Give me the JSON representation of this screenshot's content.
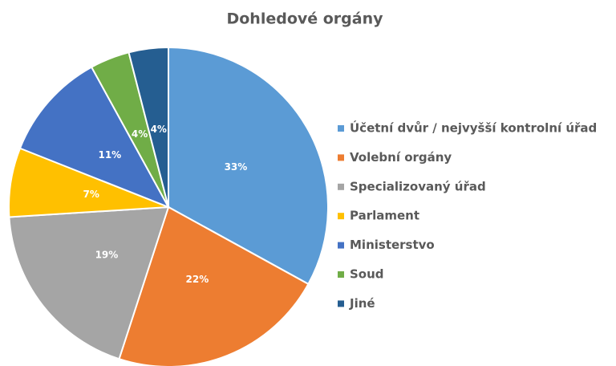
{
  "chart_data": {
    "type": "pie",
    "title": "Dohledové orgány",
    "categories": [
      "Účetní dvůr / nejvyšší kontrolní úřad",
      "Volební orgány",
      "Specializovaný úřad",
      "Parlament",
      "Ministerstvo",
      "Soud",
      "Jiné"
    ],
    "values": [
      33,
      22,
      19,
      7,
      11,
      4,
      4
    ],
    "value_labels": [
      "33%",
      "22%",
      "19%",
      "7%",
      "11%",
      "4%",
      "4%"
    ],
    "colors": [
      "#5b9bd5",
      "#ed7d31",
      "#a5a5a5",
      "#ffc000",
      "#4472c4",
      "#70ad47",
      "#255e91"
    ],
    "legend": "right"
  }
}
